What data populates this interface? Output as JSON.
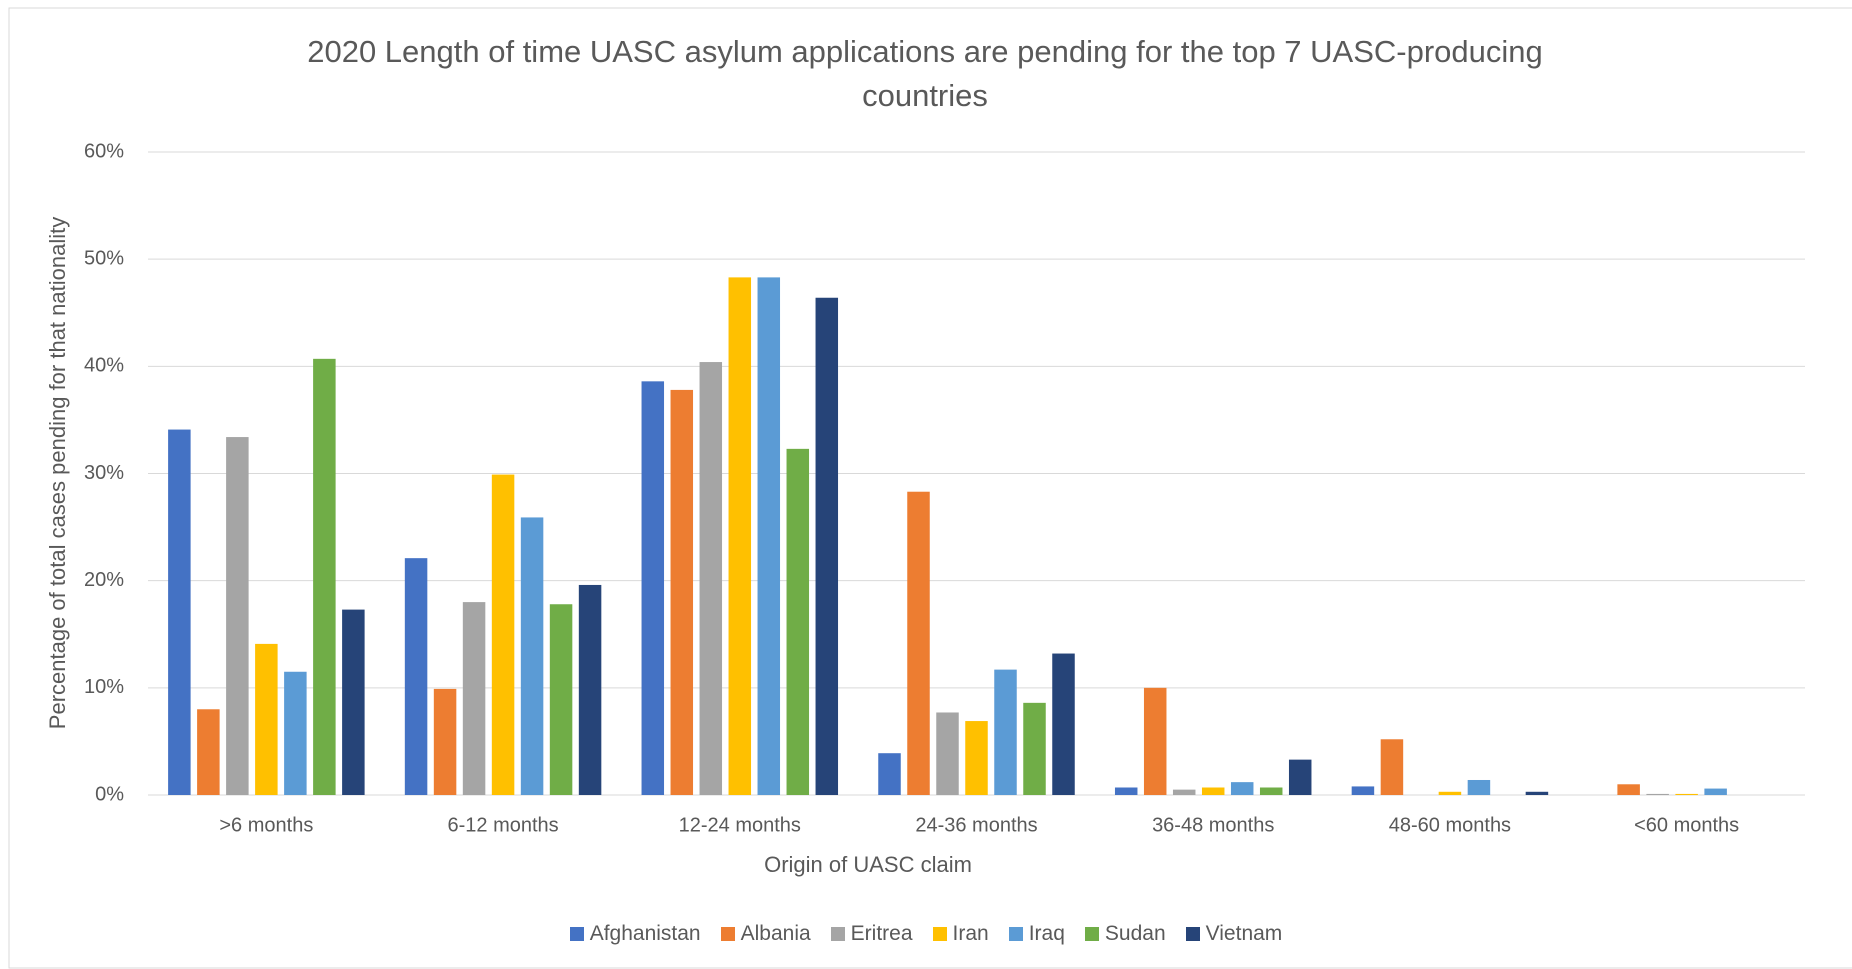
{
  "chart_data": {
    "type": "bar",
    "title": "2020 Length of time UASC asylum applications are pending for the top 7 UASC-producing countries",
    "x_label": "Origin of UASC claim",
    "y_label": "Percentage of total cases pending for that nationality",
    "categories": [
      ">6 months",
      "6-12 months",
      "12-24 months",
      "24-36 months",
      "36-48 months",
      "48-60 months",
      "<60 months"
    ],
    "series": [
      {
        "name": "Afghanistan",
        "color": "#4472c4",
        "values": [
          34.1,
          22.1,
          38.6,
          3.9,
          0.7,
          0.8,
          0
        ]
      },
      {
        "name": "Albania",
        "color": "#ed7d31",
        "values": [
          8.0,
          9.9,
          37.8,
          28.3,
          10.0,
          5.2,
          1.0
        ]
      },
      {
        "name": "Eritrea",
        "color": "#a5a5a5",
        "values": [
          33.4,
          18.0,
          40.4,
          7.7,
          0.5,
          0,
          0.1
        ]
      },
      {
        "name": "Iran",
        "color": "#ffc000",
        "values": [
          14.1,
          29.9,
          48.3,
          6.9,
          0.7,
          0.3,
          0.1
        ]
      },
      {
        "name": "Iraq",
        "color": "#5b9bd5",
        "values": [
          11.5,
          25.9,
          48.3,
          11.7,
          1.2,
          1.4,
          0.6
        ]
      },
      {
        "name": "Sudan",
        "color": "#70ad47",
        "values": [
          40.7,
          17.8,
          32.3,
          8.6,
          0.7,
          0,
          0
        ]
      },
      {
        "name": "Vietnam",
        "color": "#264478",
        "values": [
          17.3,
          19.6,
          46.4,
          13.2,
          3.3,
          0.3,
          0
        ]
      }
    ],
    "ylim": [
      0,
      60
    ],
    "yticks": [
      {
        "value": 0,
        "label": "0%"
      },
      {
        "value": 10,
        "label": "10%"
      },
      {
        "value": 20,
        "label": "20%"
      },
      {
        "value": 30,
        "label": "30%"
      },
      {
        "value": 40,
        "label": "40%"
      },
      {
        "value": 50,
        "label": "50%"
      },
      {
        "value": 60,
        "label": "60%"
      }
    ],
    "grid": true
  }
}
